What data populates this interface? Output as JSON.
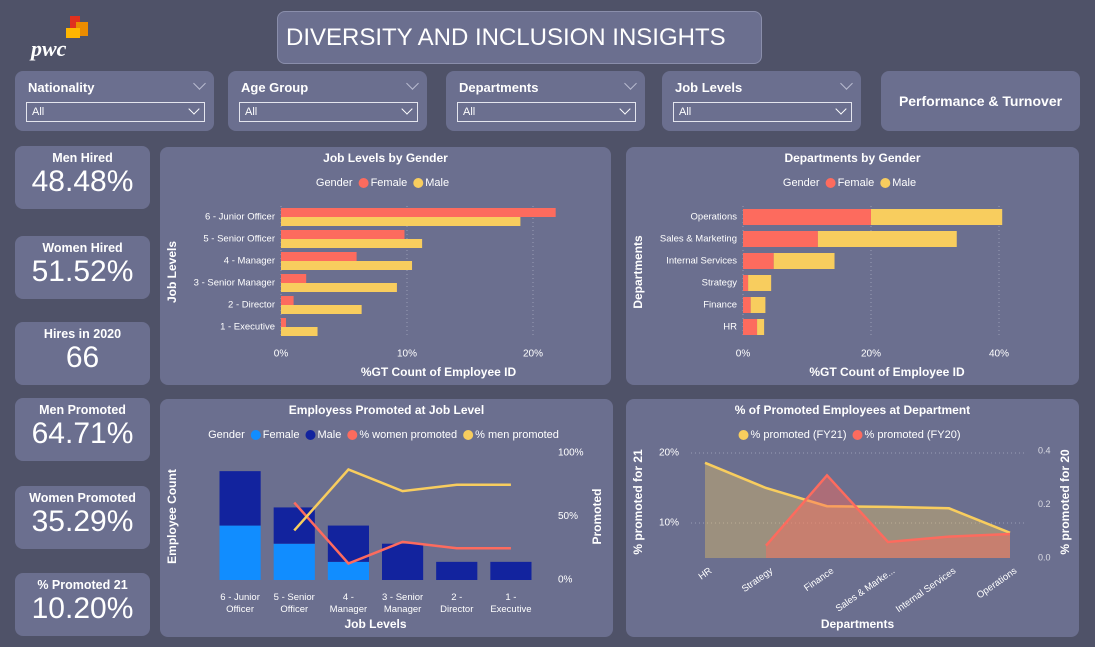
{
  "header": {
    "logo": "pwc",
    "title": "DIVERSITY AND INCLUSION INSIGHTS"
  },
  "filters": [
    {
      "label": "Nationality",
      "value": "All"
    },
    {
      "label": "Age Group",
      "value": "All"
    },
    {
      "label": "Departments",
      "value": "All"
    },
    {
      "label": "Job Levels",
      "value": "All"
    }
  ],
  "button": "Performance & Turnover",
  "kpis": [
    {
      "label": "Men Hired",
      "value": "48.48%"
    },
    {
      "label": "Women Hired",
      "value": "51.52%"
    },
    {
      "label": "Hires in 2020",
      "value": "66"
    },
    {
      "label": "Men Promoted",
      "value": "64.71%"
    },
    {
      "label": "Women Promoted",
      "value": "35.29%"
    },
    {
      "label": "% Promoted 21",
      "value": "10.20%"
    }
  ],
  "chart_data": [
    {
      "type": "bar",
      "orientation": "horizontal",
      "stacked": false,
      "title": "Job Levels by Gender",
      "legend_title": "Gender",
      "x_label": "%GT Count of Employee ID",
      "y_label": "Job Levels",
      "categories": [
        "6 - Junior Officer",
        "5 - Senior Officer",
        "4 - Manager",
        "3 - Senior Manager",
        "2 - Director",
        "1 - Executive"
      ],
      "series": [
        {
          "name": "Female",
          "color": "#fd6b5e",
          "values": [
            21.8,
            9.8,
            6.0,
            2.0,
            1.0,
            0.4
          ]
        },
        {
          "name": "Male",
          "color": "#f8cd5e",
          "values": [
            19.0,
            11.2,
            10.4,
            9.2,
            6.4,
            2.9
          ]
        }
      ],
      "xlim": [
        0,
        25
      ],
      "xticks": [
        {
          "value": 0,
          "label": "0%"
        },
        {
          "value": 10,
          "label": "10%"
        },
        {
          "value": 20,
          "label": "20%"
        }
      ],
      "grid": true
    },
    {
      "type": "bar",
      "orientation": "horizontal",
      "stacked": true,
      "title": "Departments by Gender",
      "legend_title": "Gender",
      "x_label": "%GT Count of Employee ID",
      "y_label": "Departments",
      "categories": [
        "Operations",
        "Sales & Marketing",
        "Internal Services",
        "Strategy",
        "Finance",
        "HR"
      ],
      "series": [
        {
          "name": "Female",
          "color": "#fd6b5e",
          "values": [
            20.0,
            11.7,
            4.8,
            0.8,
            1.2,
            2.2
          ]
        },
        {
          "name": "Male",
          "color": "#f8cd5e",
          "values": [
            20.5,
            21.7,
            9.5,
            3.6,
            2.3,
            1.1
          ]
        }
      ],
      "xlim": [
        0,
        45
      ],
      "xticks": [
        {
          "value": 0,
          "label": "0%"
        },
        {
          "value": 20,
          "label": "20%"
        },
        {
          "value": 40,
          "label": "40%"
        }
      ],
      "grid": true
    },
    {
      "type": "combo",
      "stacked": true,
      "title": "Employess Promoted at Job Level",
      "legend_title": "Gender",
      "x_label": "Job Levels",
      "y_label": "Employee Count",
      "y2_label": "Promoted",
      "categories": [
        "6 - Junior Officer",
        "5 - Senior Officer",
        "4 - Manager",
        "3 - Senior Manager",
        "2 - Director",
        "1 - Executive"
      ],
      "series": [
        {
          "name": "Female",
          "color": "#118dff",
          "type": "bar",
          "values": [
            3,
            2,
            1,
            0,
            0,
            0
          ]
        },
        {
          "name": "Male",
          "color": "#12239e",
          "type": "bar",
          "values": [
            3,
            2,
            2,
            2,
            1,
            1
          ]
        },
        {
          "name": "% women promoted",
          "color": "#fd6b5e",
          "type": "line",
          "axis": "y2",
          "values": [
            null,
            61,
            13,
            30,
            25,
            25
          ]
        },
        {
          "name": "% men promoted",
          "color": "#f8cd5e",
          "type": "line",
          "axis": "y2",
          "values": [
            null,
            39,
            87,
            70,
            75,
            75
          ]
        }
      ],
      "ylim": [
        0,
        7
      ],
      "y2lim": [
        0,
        100
      ],
      "y2ticks": [
        {
          "value": 0,
          "label": "0%"
        },
        {
          "value": 50,
          "label": "50%"
        },
        {
          "value": 100,
          "label": "100%"
        }
      ],
      "grid": false
    },
    {
      "type": "area",
      "title": "% of Promoted Employees at Department",
      "x_label": "Departments",
      "y_label": "% promoted for 21",
      "y2_label": "% promoted for 20",
      "categories": [
        "HR",
        "Strategy",
        "Finance",
        "Sales & Marke...",
        "Internal Services",
        "Operations"
      ],
      "series": [
        {
          "name": "% promoted (FY21)",
          "color": "#f8cd5e",
          "values": [
            18.6,
            15.0,
            12.4,
            12.3,
            12.1,
            8.6
          ]
        },
        {
          "name": "% promoted (FY20)",
          "color": "#fd6b5e",
          "axis": "y2",
          "values": [
            null,
            0.046,
            0.31,
            0.06,
            0.08,
            0.09
          ]
        }
      ],
      "ylim": [
        5,
        21
      ],
      "yticks": [
        {
          "value": 10,
          "label": "10%"
        },
        {
          "value": 20,
          "label": "20%"
        }
      ],
      "y2lim": [
        0,
        0.42
      ],
      "y2ticks": [
        {
          "value": 0,
          "label": "0.0"
        },
        0.2,
        0.4
      ],
      "grid": true
    }
  ]
}
